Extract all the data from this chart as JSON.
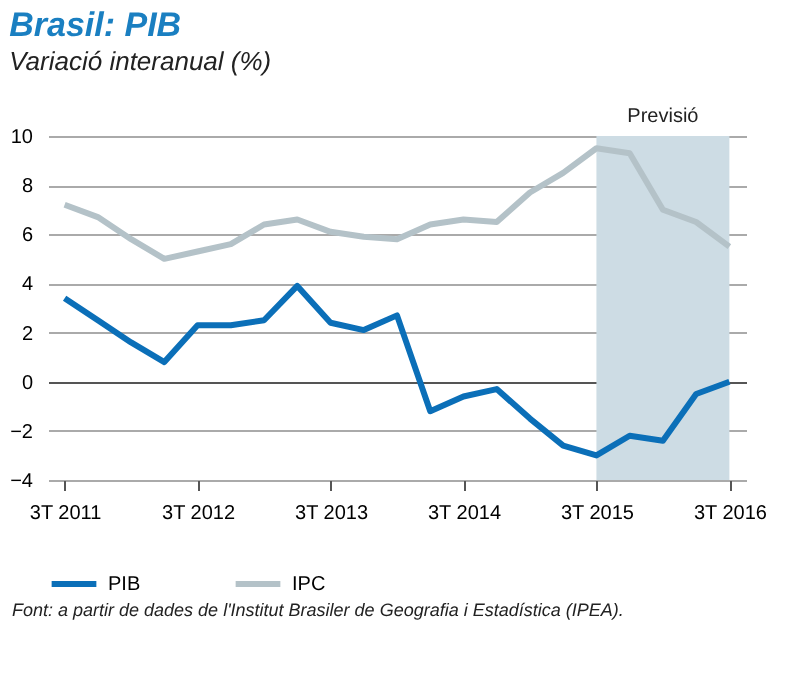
{
  "chart_data": {
    "type": "line",
    "title": "Brasil: PIB",
    "subtitle": "Variació interanual (%)",
    "annotations": [
      "Font: a partir de dades de l'Institut Brasiler de Geografia i Estadística (IPEA)."
    ],
    "categories": [
      "3T 2011",
      null,
      null,
      null,
      "3T 2012",
      null,
      null,
      null,
      "3T 2013",
      null,
      null,
      null,
      "3T 2014",
      null,
      null,
      null,
      "3T 2015",
      null,
      null,
      null,
      "3T 2016"
    ],
    "ylim": [
      -4,
      10
    ],
    "yticks": [
      -4,
      -2,
      0,
      2,
      4,
      6,
      8,
      10
    ],
    "grid": "y",
    "legend": "bottom",
    "line_style": "solid",
    "bands": [
      {
        "axis": "x",
        "from": "3T 2015",
        "to": "3T 2016",
        "label": "Previsió",
        "color": "#cddce4"
      }
    ],
    "series": [
      {
        "name": "PIB",
        "color": "#0b6fb8",
        "values": [
          3.4,
          2.5,
          1.6,
          0.8,
          2.3,
          2.3,
          2.5,
          3.9,
          2.4,
          2.1,
          2.7,
          -1.2,
          -0.6,
          -0.3,
          -1.5,
          -2.6,
          -3.0,
          -2.2,
          -2.4,
          -0.5,
          0.0
        ]
      },
      {
        "name": "IPC",
        "color": "#b4c2c8",
        "values": [
          7.2,
          6.7,
          5.8,
          5.0,
          5.3,
          5.6,
          6.4,
          6.6,
          6.1,
          5.9,
          5.8,
          6.4,
          6.6,
          6.5,
          7.7,
          8.5,
          9.5,
          9.3,
          7.0,
          6.5,
          5.5
        ]
      }
    ]
  }
}
